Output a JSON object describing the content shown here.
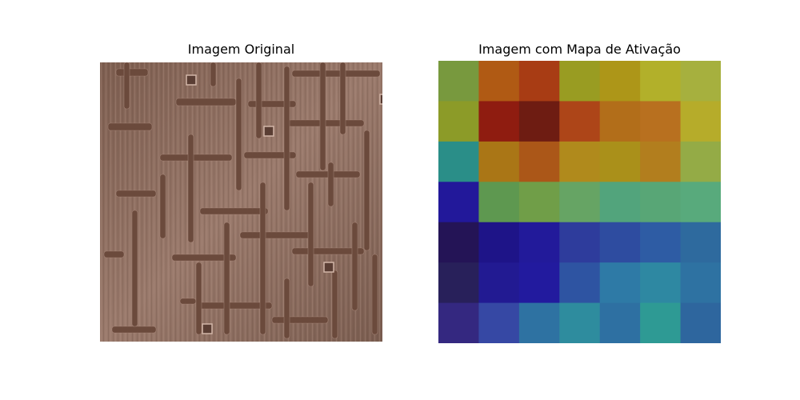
{
  "figure": {
    "left_title": "Imagem Original",
    "right_title": "Imagem com Mapa de Ativação"
  },
  "original_image": {
    "description_colors": {
      "background": "#8a6a5c",
      "streak_light": "#a98a7c",
      "streak_dark": "#6f5146",
      "groove": "#6b4a3c",
      "groove_highlight": "#b8988a"
    }
  },
  "activation_grid": {
    "rows": 7,
    "cols": 7,
    "colors": [
      [
        "#78993e",
        "#b05a14",
        "#a83c14",
        "#999c22",
        "#ad9618",
        "#b2b02a",
        "#a6b03e"
      ],
      [
        "#8c9b28",
        "#8f1c10",
        "#6e1c12",
        "#ad4518",
        "#b26e1a",
        "#b8701f",
        "#b6ac2a"
      ],
      [
        "#2a8e88",
        "#aa7616",
        "#ab5718",
        "#b08a1c",
        "#aa901a",
        "#b27e1e",
        "#94ab46"
      ],
      [
        "#22189a",
        "#5e9850",
        "#709e48",
        "#66a464",
        "#52a47c",
        "#58a676",
        "#58aa7c"
      ],
      [
        "#241456",
        "#1e1488",
        "#221a9a",
        "#2e3c9c",
        "#2e4ca0",
        "#2e5ca4",
        "#2e6a9e"
      ],
      [
        "#28205a",
        "#221a92",
        "#221a9e",
        "#2e54a2",
        "#2e7aa6",
        "#2e88a2",
        "#2e72a2"
      ],
      [
        "#342880",
        "#3648a4",
        "#2e72a2",
        "#2e8c9e",
        "#2e70a2",
        "#2e9a94",
        "#2e669e"
      ]
    ]
  }
}
